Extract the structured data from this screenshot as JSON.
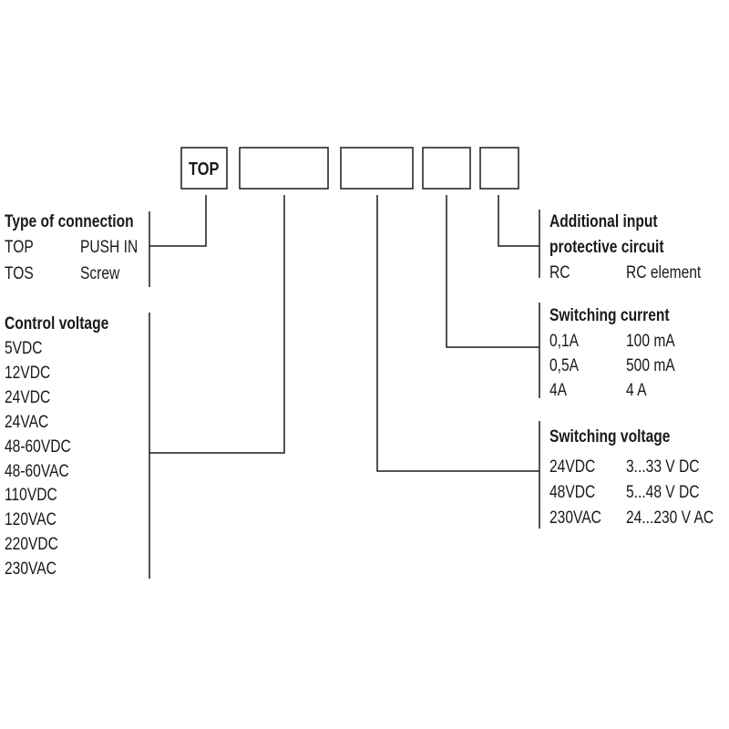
{
  "code_boxes": [
    "TOP",
    "",
    "",
    "",
    ""
  ],
  "type_of_connection": {
    "heading": "Type of connection",
    "rows": [
      [
        "TOP",
        "PUSH IN"
      ],
      [
        "TOS",
        "Screw"
      ]
    ]
  },
  "control_voltage": {
    "heading": "Control voltage",
    "rows": [
      "5VDC",
      "12VDC",
      "24VDC",
      "24VAC",
      "48-60VDC",
      "48-60VAC",
      "110VDC",
      "120VAC",
      "220VDC",
      "230VAC"
    ]
  },
  "additional_input": {
    "heading_line1": "Additional input",
    "heading_line2": "protective circuit",
    "rows": [
      [
        "RC",
        "RC element"
      ]
    ]
  },
  "switching_current": {
    "heading": "Switching current",
    "rows": [
      [
        "0,1A",
        "100 mA"
      ],
      [
        "0,5A",
        "500 mA"
      ],
      [
        "4A",
        "4 A"
      ]
    ]
  },
  "switching_voltage": {
    "heading": "Switching voltage",
    "rows": [
      [
        "24VDC",
        "3...33 V DC"
      ],
      [
        "48VDC",
        "5...48 V DC"
      ],
      [
        "230VAC",
        "24...230 V AC"
      ]
    ]
  }
}
